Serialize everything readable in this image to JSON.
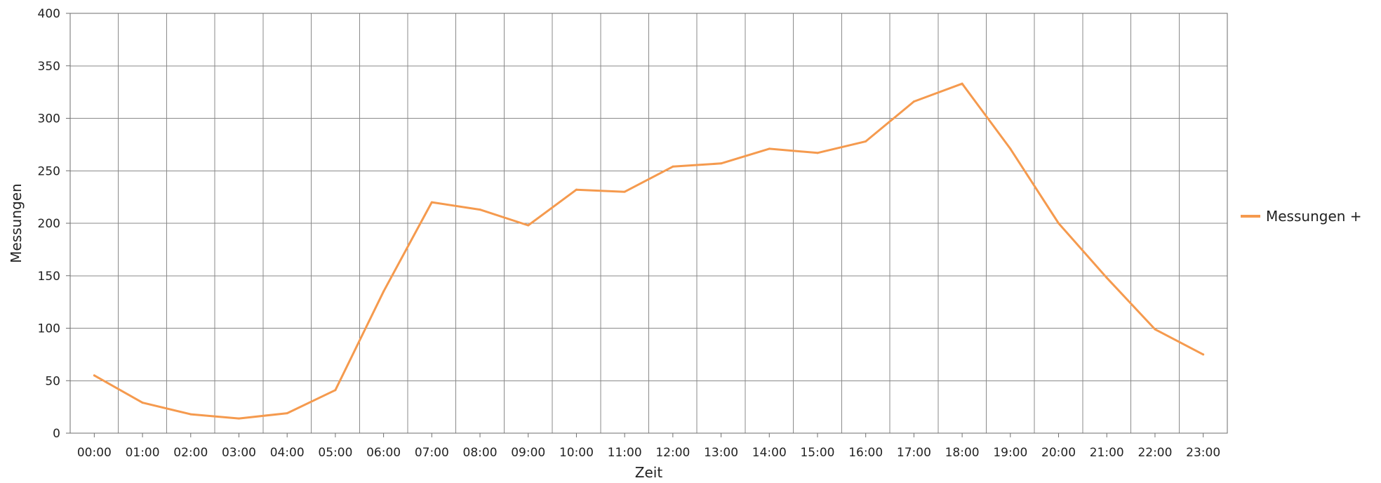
{
  "chart_data": {
    "type": "line",
    "title": "",
    "xlabel": "Zeit",
    "ylabel": "Messungen",
    "categories": [
      "00:00",
      "01:00",
      "02:00",
      "03:00",
      "04:00",
      "05:00",
      "06:00",
      "07:00",
      "08:00",
      "09:00",
      "10:00",
      "11:00",
      "12:00",
      "13:00",
      "14:00",
      "15:00",
      "16:00",
      "17:00",
      "18:00",
      "19:00",
      "20:00",
      "21:00",
      "22:00",
      "23:00"
    ],
    "series": [
      {
        "name": "Messungen +",
        "color": "#f59a4e",
        "values": [
          55,
          29,
          18,
          14,
          19,
          41,
          135,
          220,
          213,
          198,
          232,
          230,
          254,
          257,
          271,
          267,
          278,
          316,
          333,
          271,
          200,
          148,
          99,
          75
        ]
      }
    ],
    "ylim": [
      0,
      400
    ],
    "yticks": [
      0,
      50,
      100,
      150,
      200,
      250,
      300,
      350,
      400
    ],
    "grid": true,
    "legend_position": "right"
  }
}
